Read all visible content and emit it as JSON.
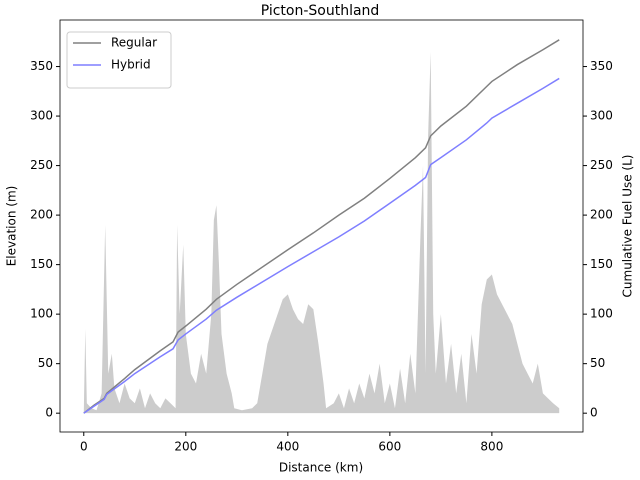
{
  "chart_data": {
    "type": "line",
    "title": "Picton-Southland",
    "xlabel": "Distance (km)",
    "ylabel": "Elevation (m)",
    "y2label": "Cumulative Fuel Use (L)",
    "xlim": [
      -46.6,
      978.6
    ],
    "xticks": [
      0,
      200,
      400,
      600,
      800
    ],
    "ylim": [
      -19,
      397
    ],
    "yticks": [
      0,
      50,
      100,
      150,
      200,
      250,
      300,
      350
    ],
    "y2lim": [
      -19,
      397
    ],
    "y2ticks": [
      0,
      50,
      100,
      150,
      200,
      250,
      300,
      350
    ],
    "legend": "upper left",
    "area": {
      "color": "#cccccc",
      "x": [
        0,
        3,
        6,
        15,
        25,
        35,
        42,
        48,
        55,
        60,
        70,
        80,
        90,
        100,
        110,
        120,
        130,
        140,
        150,
        160,
        170,
        180,
        183,
        188,
        195,
        200,
        210,
        220,
        230,
        240,
        250,
        255,
        260,
        265,
        270,
        280,
        290,
        295,
        310,
        330,
        340,
        350,
        360,
        370,
        380,
        390,
        400,
        410,
        420,
        430,
        440,
        450,
        460,
        470,
        475,
        490,
        500,
        510,
        520,
        530,
        540,
        550,
        560,
        570,
        580,
        590,
        600,
        610,
        620,
        630,
        640,
        650,
        660,
        665,
        670,
        675,
        680,
        685,
        690,
        700,
        710,
        720,
        730,
        740,
        750,
        760,
        770,
        780,
        790,
        800,
        810,
        820,
        830,
        840,
        850,
        860,
        870,
        880,
        890,
        900,
        910,
        920,
        932
      ],
      "values": [
        0,
        85,
        10,
        5,
        3,
        20,
        190,
        40,
        60,
        25,
        10,
        30,
        15,
        10,
        25,
        5,
        20,
        10,
        5,
        15,
        10,
        5,
        190,
        100,
        170,
        80,
        40,
        30,
        60,
        40,
        100,
        195,
        210,
        150,
        80,
        40,
        20,
        5,
        3,
        5,
        10,
        40,
        70,
        85,
        100,
        115,
        120,
        105,
        95,
        90,
        110,
        105,
        70,
        30,
        5,
        10,
        20,
        5,
        25,
        10,
        30,
        15,
        40,
        20,
        50,
        10,
        30,
        5,
        45,
        10,
        60,
        20,
        180,
        250,
        40,
        280,
        365,
        100,
        40,
        100,
        30,
        70,
        20,
        60,
        10,
        80,
        40,
        110,
        135,
        140,
        120,
        110,
        100,
        90,
        70,
        50,
        40,
        30,
        50,
        20,
        15,
        10,
        5
      ]
    },
    "series": [
      {
        "name": "Regular",
        "color": "#808080",
        "axis": "y2",
        "x": [
          0,
          20,
          40,
          45,
          80,
          100,
          150,
          175,
          185,
          200,
          240,
          260,
          300,
          400,
          450,
          500,
          550,
          600,
          650,
          670,
          680,
          700,
          750,
          790,
          800,
          850,
          900,
          932
        ],
        "values": [
          0,
          8,
          15,
          20,
          35,
          44,
          63,
          72,
          82,
          88,
          105,
          115,
          130,
          165,
          182,
          200,
          217,
          237,
          258,
          268,
          280,
          290,
          310,
          330,
          335,
          352,
          367,
          377
        ]
      },
      {
        "name": "Hybrid",
        "color": "#7f7fff",
        "axis": "y2",
        "x": [
          0,
          20,
          40,
          45,
          80,
          100,
          150,
          175,
          185,
          200,
          240,
          260,
          300,
          400,
          450,
          500,
          550,
          600,
          650,
          670,
          680,
          700,
          750,
          790,
          800,
          850,
          900,
          932
        ],
        "values": [
          0,
          7,
          14,
          19,
          32,
          40,
          57,
          65,
          74,
          80,
          95,
          104,
          117,
          148,
          163,
          178,
          194,
          212,
          230,
          238,
          251,
          258,
          276,
          293,
          298,
          313,
          328,
          338
        ]
      }
    ]
  }
}
